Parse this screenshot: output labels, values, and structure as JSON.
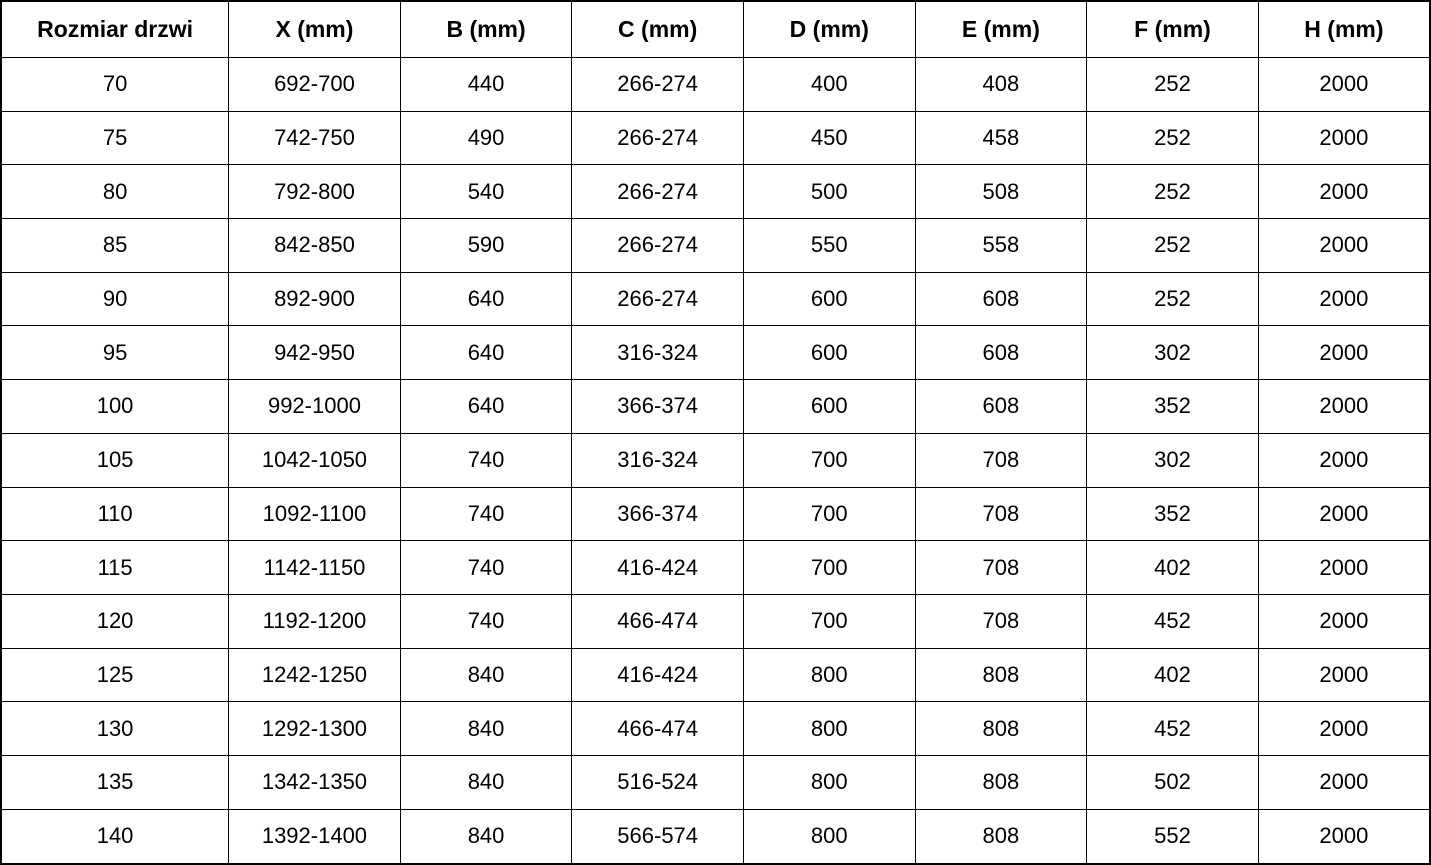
{
  "colors": {
    "border": "#000000",
    "background": "#ffffff",
    "text": "#000000"
  },
  "table": {
    "headers": [
      "Rozmiar drzwi",
      "X (mm)",
      "B (mm)",
      "C (mm)",
      "D (mm)",
      "E (mm)",
      "F (mm)",
      "H (mm)"
    ],
    "rows": [
      [
        "70",
        "692-700",
        "440",
        "266-274",
        "400",
        "408",
        "252",
        "2000"
      ],
      [
        "75",
        "742-750",
        "490",
        "266-274",
        "450",
        "458",
        "252",
        "2000"
      ],
      [
        "80",
        "792-800",
        "540",
        "266-274",
        "500",
        "508",
        "252",
        "2000"
      ],
      [
        "85",
        "842-850",
        "590",
        "266-274",
        "550",
        "558",
        "252",
        "2000"
      ],
      [
        "90",
        "892-900",
        "640",
        "266-274",
        "600",
        "608",
        "252",
        "2000"
      ],
      [
        "95",
        "942-950",
        "640",
        "316-324",
        "600",
        "608",
        "302",
        "2000"
      ],
      [
        "100",
        "992-1000",
        "640",
        "366-374",
        "600",
        "608",
        "352",
        "2000"
      ],
      [
        "105",
        "1042-1050",
        "740",
        "316-324",
        "700",
        "708",
        "302",
        "2000"
      ],
      [
        "110",
        "1092-1100",
        "740",
        "366-374",
        "700",
        "708",
        "352",
        "2000"
      ],
      [
        "115",
        "1142-1150",
        "740",
        "416-424",
        "700",
        "708",
        "402",
        "2000"
      ],
      [
        "120",
        "1192-1200",
        "740",
        "466-474",
        "700",
        "708",
        "452",
        "2000"
      ],
      [
        "125",
        "1242-1250",
        "840",
        "416-424",
        "800",
        "808",
        "402",
        "2000"
      ],
      [
        "130",
        "1292-1300",
        "840",
        "466-474",
        "800",
        "808",
        "452",
        "2000"
      ],
      [
        "135",
        "1342-1350",
        "840",
        "516-524",
        "800",
        "808",
        "502",
        "2000"
      ],
      [
        "140",
        "1392-1400",
        "840",
        "566-574",
        "800",
        "808",
        "552",
        "2000"
      ]
    ]
  },
  "chart_data": {
    "type": "table",
    "title": "",
    "columns": [
      "Rozmiar drzwi",
      "X (mm)",
      "B (mm)",
      "C (mm)",
      "D (mm)",
      "E (mm)",
      "F (mm)",
      "H (mm)"
    ],
    "rows": [
      [
        "70",
        "692-700",
        "440",
        "266-274",
        "400",
        "408",
        "252",
        "2000"
      ],
      [
        "75",
        "742-750",
        "490",
        "266-274",
        "450",
        "458",
        "252",
        "2000"
      ],
      [
        "80",
        "792-800",
        "540",
        "266-274",
        "500",
        "508",
        "252",
        "2000"
      ],
      [
        "85",
        "842-850",
        "590",
        "266-274",
        "550",
        "558",
        "252",
        "2000"
      ],
      [
        "90",
        "892-900",
        "640",
        "266-274",
        "600",
        "608",
        "252",
        "2000"
      ],
      [
        "95",
        "942-950",
        "640",
        "316-324",
        "600",
        "608",
        "302",
        "2000"
      ],
      [
        "100",
        "992-1000",
        "640",
        "366-374",
        "600",
        "608",
        "352",
        "2000"
      ],
      [
        "105",
        "1042-1050",
        "740",
        "316-324",
        "700",
        "708",
        "302",
        "2000"
      ],
      [
        "110",
        "1092-1100",
        "740",
        "366-374",
        "700",
        "708",
        "352",
        "2000"
      ],
      [
        "115",
        "1142-1150",
        "740",
        "416-424",
        "700",
        "708",
        "402",
        "2000"
      ],
      [
        "120",
        "1192-1200",
        "740",
        "466-474",
        "700",
        "708",
        "452",
        "2000"
      ],
      [
        "125",
        "1242-1250",
        "840",
        "416-424",
        "800",
        "808",
        "402",
        "2000"
      ],
      [
        "130",
        "1292-1300",
        "840",
        "466-474",
        "800",
        "808",
        "452",
        "2000"
      ],
      [
        "135",
        "1342-1350",
        "840",
        "516-524",
        "800",
        "808",
        "502",
        "2000"
      ],
      [
        "140",
        "1392-1400",
        "840",
        "566-574",
        "800",
        "808",
        "552",
        "2000"
      ]
    ],
    "notes": "Door size specification table; grid on; all cells center-aligned; header row bold"
  }
}
